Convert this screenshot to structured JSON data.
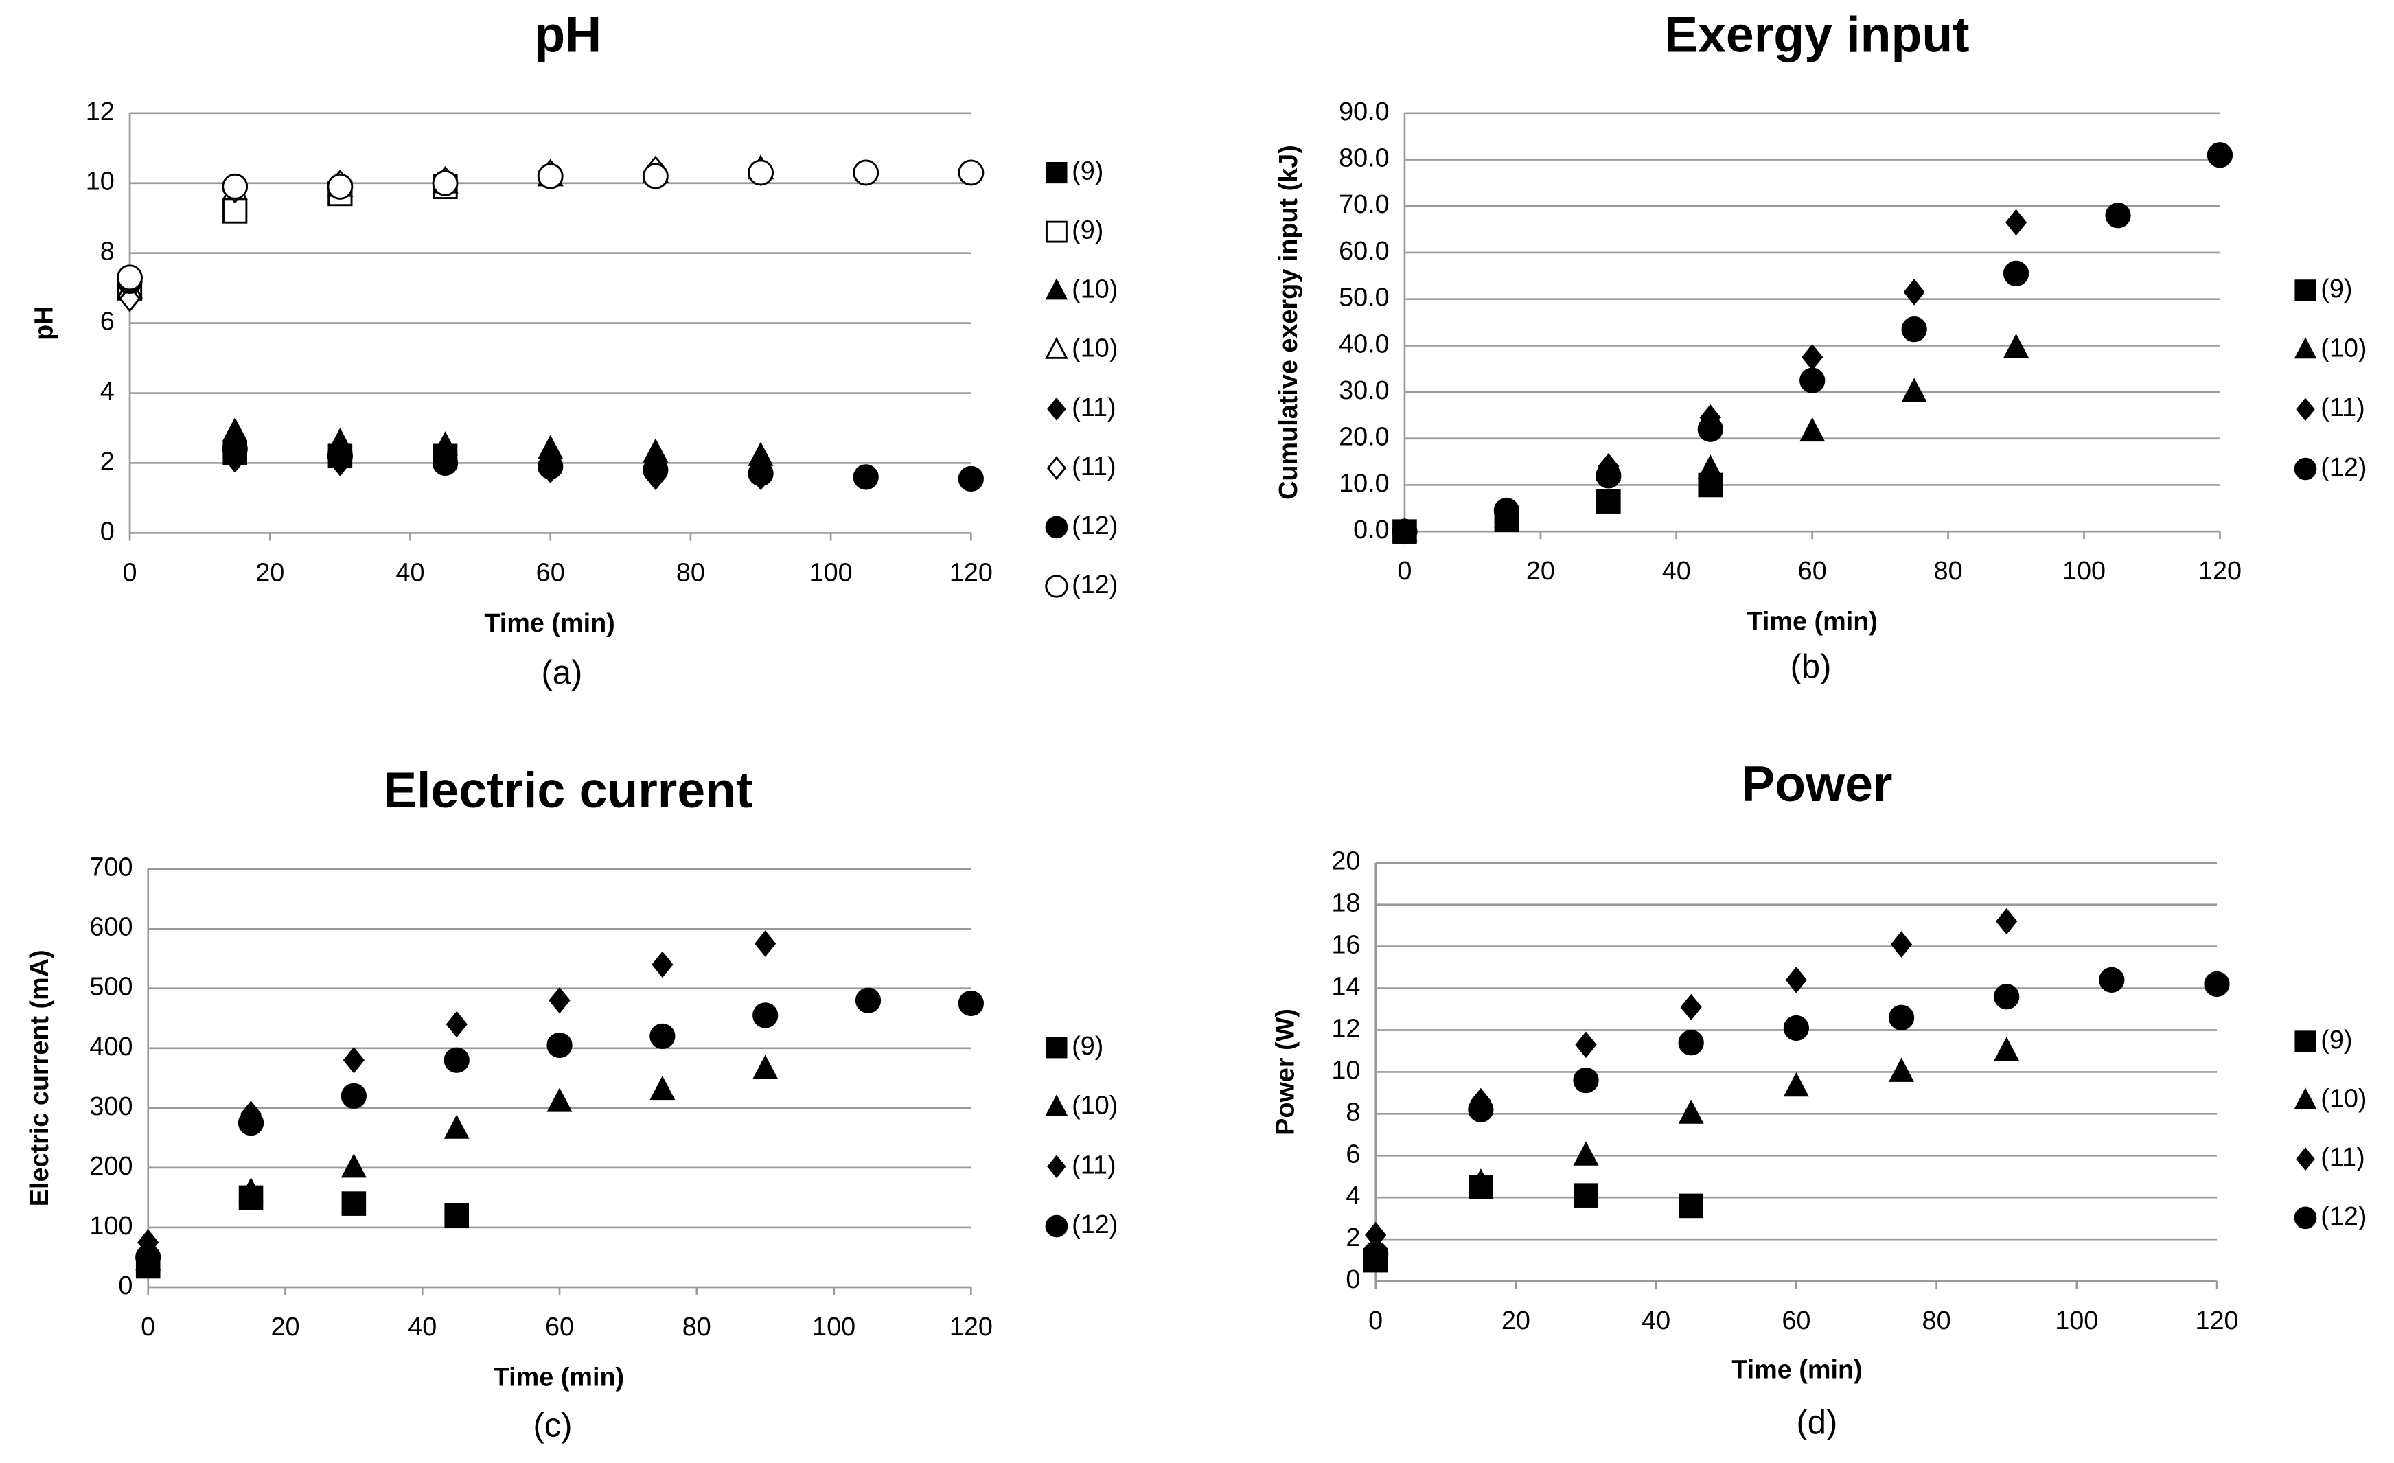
{
  "chart_data": [
    {
      "type": "scatter",
      "title": "pH",
      "caption": "(a)",
      "x_label": "Time (min)",
      "y_label": "pH",
      "xlim": [
        0,
        120
      ],
      "xticks": [
        0,
        20,
        40,
        60,
        80,
        100,
        120
      ],
      "ylim": [
        0,
        12
      ],
      "yticks": [
        0,
        2,
        4,
        6,
        8,
        10,
        12
      ],
      "grid": true,
      "series": [
        {
          "name": "(9)",
          "marker": "square",
          "filled": true,
          "color": "#000000",
          "x": [
            0,
            15,
            30,
            45
          ],
          "values": [
            7.0,
            2.3,
            2.2,
            2.2
          ]
        },
        {
          "name": "(9)",
          "marker": "square",
          "filled": false,
          "color": "#000000",
          "x": [
            0,
            15,
            30,
            45
          ],
          "values": [
            7.0,
            9.2,
            9.7,
            9.9
          ]
        },
        {
          "name": "(10)",
          "marker": "triangle",
          "filled": true,
          "color": "#000000",
          "x": [
            0,
            15,
            30,
            45,
            60,
            75,
            90
          ],
          "values": [
            7.0,
            2.9,
            2.6,
            2.5,
            2.4,
            2.3,
            2.2
          ]
        },
        {
          "name": "(10)",
          "marker": "triangle",
          "filled": false,
          "color": "#000000",
          "x": [
            0,
            15,
            30,
            45,
            60,
            75,
            90
          ],
          "values": [
            7.0,
            9.8,
            9.9,
            10.0,
            10.2,
            10.3,
            10.4
          ]
        },
        {
          "name": "(11)",
          "marker": "diamond",
          "filled": true,
          "color": "#000000",
          "x": [
            0,
            15,
            30,
            45,
            60,
            75,
            90
          ],
          "values": [
            7.0,
            2.1,
            2.0,
            2.0,
            1.8,
            1.6,
            1.6
          ]
        },
        {
          "name": "(11)",
          "marker": "diamond",
          "filled": false,
          "color": "#000000",
          "x": [
            0,
            15,
            30,
            45,
            60,
            75,
            90
          ],
          "values": [
            6.7,
            9.8,
            10.0,
            10.1,
            10.3,
            10.4,
            10.3
          ]
        },
        {
          "name": "(12)",
          "marker": "circle",
          "filled": true,
          "color": "#000000",
          "x": [
            0,
            15,
            30,
            45,
            60,
            75,
            90,
            105,
            120
          ],
          "values": [
            7.2,
            2.4,
            2.2,
            2.0,
            1.9,
            1.8,
            1.7,
            1.6,
            1.55
          ]
        },
        {
          "name": "(12)",
          "marker": "circle",
          "filled": false,
          "color": "#000000",
          "x": [
            0,
            15,
            30,
            45,
            60,
            75,
            90,
            105,
            120
          ],
          "values": [
            7.3,
            9.9,
            9.9,
            10.0,
            10.2,
            10.2,
            10.3,
            10.3,
            10.3
          ]
        }
      ]
    },
    {
      "type": "scatter",
      "title": "Exergy input",
      "caption": "(b)",
      "x_label": "Time (min)",
      "y_label": "Cumulative exergy input (kJ)",
      "xlim": [
        0,
        120
      ],
      "xticks": [
        0,
        20,
        40,
        60,
        80,
        100,
        120
      ],
      "ylim": [
        0,
        90
      ],
      "yticks": [
        {
          "value": 0,
          "label": "0.0"
        },
        {
          "value": 10,
          "label": "10.0"
        },
        {
          "value": 20,
          "label": "20.0"
        },
        {
          "value": 30,
          "label": "30.0"
        },
        {
          "value": 40,
          "label": "40.0"
        },
        {
          "value": 50,
          "label": "50.0"
        },
        {
          "value": 60,
          "label": "60.0"
        },
        {
          "value": 70,
          "label": "70.0"
        },
        {
          "value": 80,
          "label": "80.0"
        },
        {
          "value": 90,
          "label": "90.0"
        }
      ],
      "grid": true,
      "series": [
        {
          "name": "(9)",
          "marker": "square",
          "filled": true,
          "color": "#000000",
          "x": [
            0,
            15,
            30,
            45
          ],
          "values": [
            0,
            2.5,
            6.5,
            10
          ]
        },
        {
          "name": "(10)",
          "marker": "triangle",
          "filled": true,
          "color": "#000000",
          "x": [
            0,
            15,
            30,
            45,
            60,
            75,
            90
          ],
          "values": [
            0,
            3,
            13,
            13.5,
            21.5,
            30,
            39.5
          ]
        },
        {
          "name": "(11)",
          "marker": "diamond",
          "filled": true,
          "color": "#000000",
          "x": [
            0,
            15,
            30,
            45,
            60,
            75,
            90
          ],
          "values": [
            0,
            4.5,
            14,
            24.5,
            37.5,
            51.5,
            66.5
          ]
        },
        {
          "name": "(12)",
          "marker": "circle",
          "filled": true,
          "color": "#000000",
          "x": [
            0,
            15,
            30,
            45,
            60,
            75,
            90,
            105,
            120
          ],
          "values": [
            0,
            4.5,
            12,
            22,
            32.5,
            43.5,
            55.5,
            68,
            81
          ]
        }
      ]
    },
    {
      "type": "scatter",
      "title": "Electric current",
      "caption": "(c)",
      "x_label": "Time (min)",
      "y_label": "Electric current (mA)",
      "xlim": [
        0,
        120
      ],
      "xticks": [
        0,
        20,
        40,
        60,
        80,
        100,
        120
      ],
      "ylim": [
        0,
        700
      ],
      "yticks": [
        0,
        100,
        200,
        300,
        400,
        500,
        600,
        700
      ],
      "grid": true,
      "series": [
        {
          "name": "(9)",
          "marker": "square",
          "filled": true,
          "color": "#000000",
          "x": [
            0,
            15,
            30,
            45
          ],
          "values": [
            35,
            150,
            140,
            120
          ]
        },
        {
          "name": "(10)",
          "marker": "triangle",
          "filled": true,
          "color": "#000000",
          "x": [
            0,
            15,
            30,
            45,
            60,
            75,
            90
          ],
          "values": [
            45,
            160,
            200,
            265,
            310,
            330,
            365
          ]
        },
        {
          "name": "(11)",
          "marker": "diamond",
          "filled": true,
          "color": "#000000",
          "x": [
            0,
            15,
            30,
            45,
            60,
            75,
            90
          ],
          "values": [
            75,
            290,
            380,
            440,
            480,
            540,
            575
          ]
        },
        {
          "name": "(12)",
          "marker": "circle",
          "filled": true,
          "color": "#000000",
          "x": [
            0,
            15,
            30,
            45,
            60,
            75,
            90,
            105,
            120
          ],
          "values": [
            50,
            275,
            320,
            380,
            405,
            420,
            455,
            480,
            475
          ]
        }
      ]
    },
    {
      "type": "scatter",
      "title": "Power",
      "caption": "(d)",
      "x_label": "Time (min)",
      "y_label": "Power (W)",
      "xlim": [
        0,
        120
      ],
      "xticks": [
        0,
        20,
        40,
        60,
        80,
        100,
        120
      ],
      "ylim": [
        0,
        20
      ],
      "yticks": [
        0,
        2,
        4,
        6,
        8,
        10,
        12,
        14,
        16,
        18,
        20
      ],
      "grid": true,
      "series": [
        {
          "name": "(9)",
          "marker": "square",
          "filled": true,
          "color": "#000000",
          "x": [
            0,
            15,
            30,
            45
          ],
          "values": [
            1.0,
            4.5,
            4.1,
            3.6
          ]
        },
        {
          "name": "(10)",
          "marker": "triangle",
          "filled": true,
          "color": "#000000",
          "x": [
            0,
            15,
            30,
            45,
            60,
            75,
            90
          ],
          "values": [
            1.5,
            4.7,
            6.0,
            8.0,
            9.3,
            10.0,
            11.0
          ]
        },
        {
          "name": "(11)",
          "marker": "diamond",
          "filled": true,
          "color": "#000000",
          "x": [
            0,
            15,
            30,
            45,
            60,
            75,
            90
          ],
          "values": [
            2.2,
            8.6,
            11.3,
            13.1,
            14.4,
            16.1,
            17.2
          ]
        },
        {
          "name": "(12)",
          "marker": "circle",
          "filled": true,
          "color": "#000000",
          "x": [
            0,
            15,
            30,
            45,
            60,
            75,
            90,
            105,
            120
          ],
          "values": [
            1.3,
            8.2,
            9.6,
            11.4,
            12.1,
            12.6,
            13.6,
            14.4,
            14.2
          ]
        }
      ]
    }
  ]
}
